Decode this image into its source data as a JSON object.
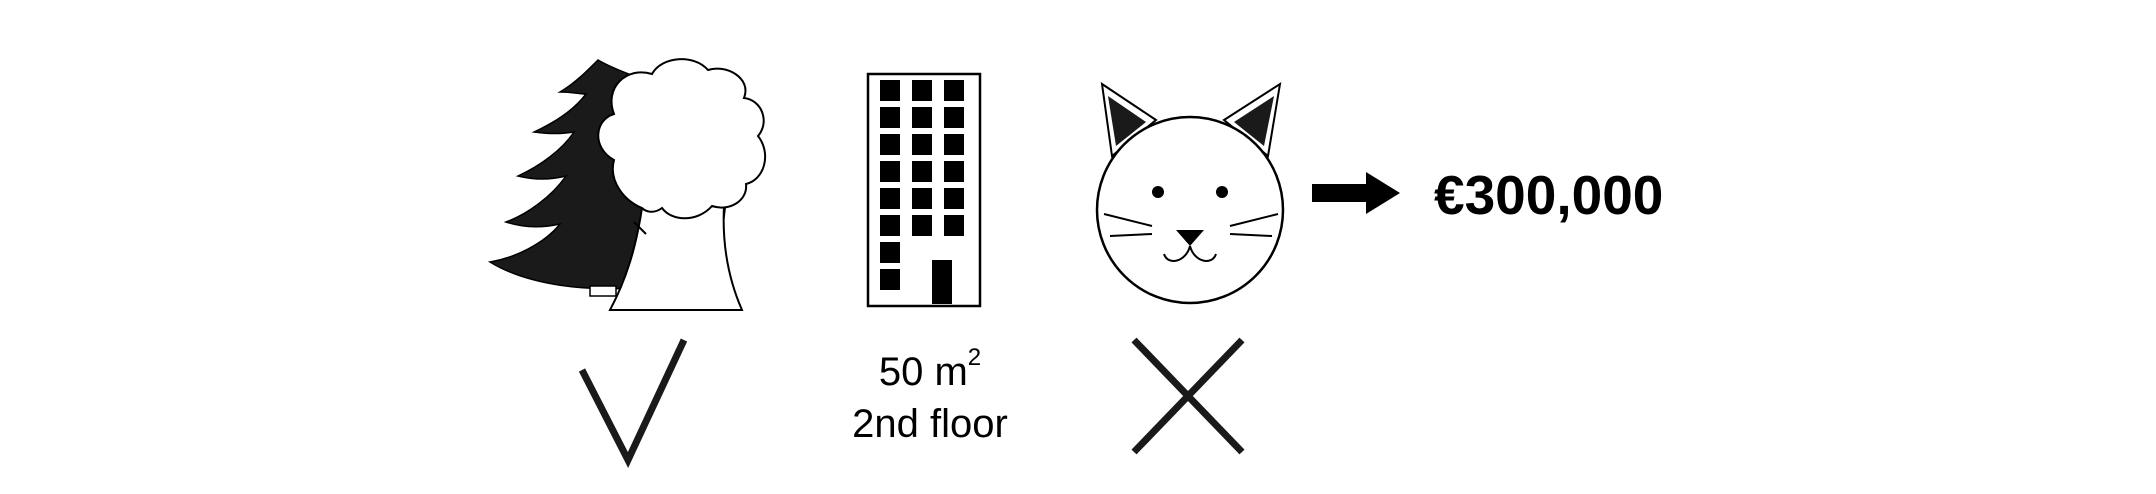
{
  "features": [
    {
      "name": "green-space",
      "icon": "trees-icon",
      "status": "yes",
      "status_icon": "checkmark-icon"
    },
    {
      "name": "building",
      "icon": "building-icon",
      "area_value": "50 m",
      "area_exponent": "2",
      "floor": "2nd floor"
    },
    {
      "name": "pets",
      "icon": "cat-icon",
      "status": "no",
      "status_icon": "cross-icon"
    }
  ],
  "result": {
    "arrow_icon": "arrow-right-icon",
    "price": "€300,000"
  },
  "colors": {
    "ink": "#000000",
    "background": "#ffffff",
    "fill_dark": "#1a1a1a"
  }
}
